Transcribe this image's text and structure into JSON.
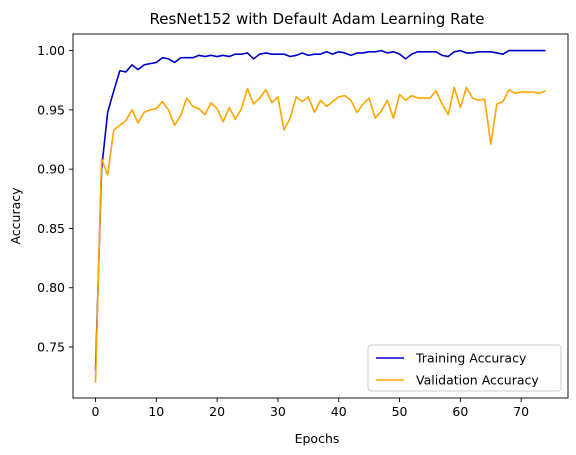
{
  "chart_data": {
    "type": "line",
    "title": "ResNet152 with Default Adam Learning Rate",
    "xlabel": "Epochs",
    "ylabel": "Accuracy",
    "xlim": [
      -3.7,
      77.7
    ],
    "ylim": [
      0.707,
      1.014
    ],
    "xticks": [
      0,
      10,
      20,
      30,
      40,
      50,
      60,
      70
    ],
    "yticks": [
      0.75,
      0.8,
      0.85,
      0.9,
      0.95,
      1.0
    ],
    "ytick_labels": [
      "0.75",
      "0.80",
      "0.85",
      "0.90",
      "0.95",
      "1.00"
    ],
    "grid": false,
    "legend_position": "lower-right",
    "series": [
      {
        "name": "Training Accuracy",
        "color": "#0000cc",
        "x": [
          0,
          1,
          2,
          3,
          4,
          5,
          6,
          7,
          8,
          9,
          10,
          11,
          12,
          13,
          14,
          15,
          16,
          17,
          18,
          19,
          20,
          21,
          22,
          23,
          24,
          25,
          26,
          27,
          28,
          29,
          30,
          31,
          32,
          33,
          34,
          35,
          36,
          37,
          38,
          39,
          40,
          41,
          42,
          43,
          44,
          45,
          46,
          47,
          48,
          49,
          50,
          51,
          52,
          53,
          54,
          55,
          56,
          57,
          58,
          59,
          60,
          61,
          62,
          63,
          64,
          65,
          66,
          67,
          68,
          69,
          70,
          71,
          72,
          73,
          74
        ],
        "values": [
          0.73,
          0.9,
          0.948,
          0.966,
          0.983,
          0.982,
          0.988,
          0.984,
          0.988,
          0.989,
          0.99,
          0.994,
          0.993,
          0.99,
          0.994,
          0.994,
          0.994,
          0.996,
          0.995,
          0.996,
          0.995,
          0.996,
          0.995,
          0.997,
          0.997,
          0.998,
          0.993,
          0.997,
          0.998,
          0.997,
          0.997,
          0.997,
          0.995,
          0.996,
          0.998,
          0.996,
          0.997,
          0.997,
          0.999,
          0.997,
          0.999,
          0.998,
          0.996,
          0.998,
          0.998,
          0.999,
          0.999,
          1.0,
          0.998,
          0.999,
          0.997,
          0.993,
          0.997,
          0.999,
          0.999,
          0.999,
          0.999,
          0.996,
          0.995,
          0.999,
          1.0,
          0.998,
          0.998,
          0.999,
          0.999,
          0.999,
          0.998,
          0.997,
          1.0,
          1.0,
          1.0,
          1.0,
          1.0,
          1.0,
          1.0
        ]
      },
      {
        "name": "Validation Accuracy",
        "color": "#ffa500",
        "x": [
          0,
          1,
          2,
          3,
          4,
          5,
          6,
          7,
          8,
          9,
          10,
          11,
          12,
          13,
          14,
          15,
          16,
          17,
          18,
          19,
          20,
          21,
          22,
          23,
          24,
          25,
          26,
          27,
          28,
          29,
          30,
          31,
          32,
          33,
          34,
          35,
          36,
          37,
          38,
          39,
          40,
          41,
          42,
          43,
          44,
          45,
          46,
          47,
          48,
          49,
          50,
          51,
          52,
          53,
          54,
          55,
          56,
          57,
          58,
          59,
          60,
          61,
          62,
          63,
          64,
          65,
          66,
          67,
          68,
          69,
          70,
          71,
          72,
          73,
          74
        ],
        "values": [
          0.72,
          0.909,
          0.895,
          0.933,
          0.937,
          0.941,
          0.95,
          0.939,
          0.948,
          0.95,
          0.951,
          0.957,
          0.95,
          0.937,
          0.945,
          0.96,
          0.953,
          0.951,
          0.946,
          0.956,
          0.951,
          0.94,
          0.952,
          0.942,
          0.951,
          0.968,
          0.955,
          0.96,
          0.967,
          0.956,
          0.961,
          0.933,
          0.943,
          0.961,
          0.957,
          0.961,
          0.948,
          0.958,
          0.953,
          0.957,
          0.961,
          0.962,
          0.958,
          0.948,
          0.955,
          0.96,
          0.943,
          0.949,
          0.958,
          0.943,
          0.963,
          0.958,
          0.962,
          0.96,
          0.96,
          0.96,
          0.966,
          0.955,
          0.946,
          0.969,
          0.952,
          0.969,
          0.96,
          0.958,
          0.959,
          0.921,
          0.955,
          0.957,
          0.967,
          0.964,
          0.965,
          0.965,
          0.965,
          0.964,
          0.966
        ]
      }
    ]
  }
}
